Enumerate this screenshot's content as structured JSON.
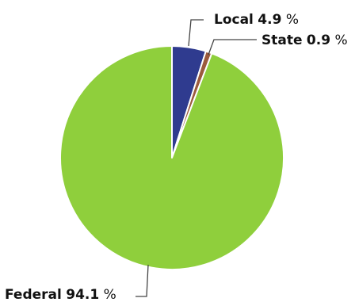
{
  "chart_data": {
    "type": "pie",
    "title": "",
    "slices": [
      {
        "name": "Local",
        "value": 4.9,
        "label_value": "4.9",
        "unit": "%",
        "color": "#2f3b8f"
      },
      {
        "name": "State",
        "value": 0.9,
        "label_value": "0.9",
        "unit": "%",
        "color": "#9b5a3c"
      },
      {
        "name": "Federal",
        "value": 94.1,
        "label_value": "94.1",
        "unit": "%",
        "color": "#8fcf3c"
      }
    ],
    "slice_border_color": "#ffffff",
    "start_angle_deg": 0,
    "direction": "clockwise",
    "legend": "none"
  }
}
